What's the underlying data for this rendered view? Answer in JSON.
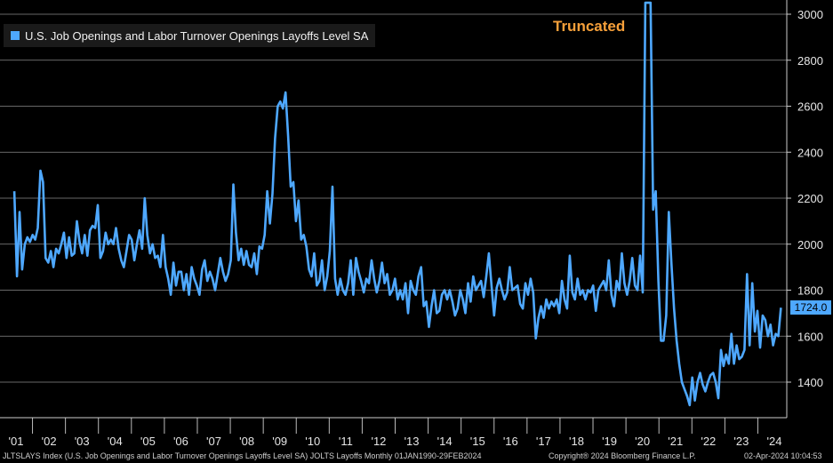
{
  "chart_data": {
    "type": "line",
    "title": "",
    "legend": "U.S. Job Openings and Labor Turnover Openings Layoffs Level SA",
    "annotation": "Truncated",
    "last_value_label": "1724.0",
    "series_color": "#4ea8ff",
    "ylim": [
      1250,
      3050
    ],
    "y_ticks": [
      1400,
      1600,
      1800,
      2000,
      2200,
      2400,
      2600,
      2800,
      3000
    ],
    "x_tick_labels": [
      "'01",
      "'02",
      "'03",
      "'04",
      "'05",
      "'06",
      "'07",
      "'08",
      "'09",
      "'10",
      "'11",
      "'12",
      "'13",
      "'14",
      "'15",
      "'16",
      "'17",
      "'18",
      "'19",
      "'20",
      "'21",
      "'22",
      "'23",
      "'24"
    ],
    "x_start_year": 2000.95,
    "x_end_year": 2024.2,
    "series": [
      {
        "values": [
          2230,
          1860,
          2140,
          1890,
          2000,
          2030,
          2010,
          2040,
          2020,
          2070,
          2320,
          2270,
          1940,
          1920,
          1970,
          1900,
          1980,
          1960,
          2000,
          2050,
          1940,
          2030,
          1950,
          1960,
          2100,
          2010,
          1960,
          2040,
          1950,
          2060,
          2080,
          2070,
          2170,
          1940,
          1970,
          2050,
          2000,
          2020,
          2000,
          2070,
          1980,
          1930,
          1900,
          1970,
          2040,
          2020,
          1930,
          2000,
          2060,
          1980,
          2200,
          2040,
          1960,
          2000,
          1940,
          1950,
          1900,
          2040,
          1900,
          1850,
          1780,
          1920,
          1820,
          1880,
          1880,
          1800,
          1870,
          1780,
          1900,
          1850,
          1820,
          1780,
          1890,
          1930,
          1840,
          1880,
          1850,
          1800,
          1870,
          1940,
          1880,
          1840,
          1870,
          1930,
          2260,
          2050,
          1930,
          1980,
          1910,
          1970,
          1910,
          1900,
          1960,
          1870,
          1990,
          1980,
          2040,
          2230,
          2090,
          2220,
          2460,
          2600,
          2620,
          2590,
          2660,
          2470,
          2250,
          2270,
          2100,
          2190,
          2020,
          2040,
          1990,
          1890,
          1860,
          1960,
          1820,
          1840,
          1930,
          1800,
          1860,
          1970,
          2250,
          1850,
          1780,
          1850,
          1800,
          1780,
          1830,
          1930,
          1780,
          1940,
          1880,
          1840,
          1790,
          1850,
          1830,
          1930,
          1850,
          1790,
          1840,
          1920,
          1830,
          1870,
          1780,
          1800,
          1850,
          1760,
          1800,
          1760,
          1830,
          1700,
          1840,
          1800,
          1780,
          1860,
          1900,
          1730,
          1750,
          1640,
          1730,
          1800,
          1700,
          1710,
          1780,
          1800,
          1760,
          1800,
          1750,
          1690,
          1720,
          1800,
          1760,
          1700,
          1830,
          1750,
          1860,
          1800,
          1820,
          1840,
          1770,
          1860,
          1960,
          1820,
          1690,
          1810,
          1850,
          1800,
          1760,
          1790,
          1900,
          1800,
          1810,
          1820,
          1740,
          1720,
          1830,
          1780,
          1850,
          1790,
          1590,
          1680,
          1730,
          1680,
          1760,
          1720,
          1750,
          1730,
          1760,
          1700,
          1840,
          1760,
          1720,
          1950,
          1790,
          1760,
          1850,
          1780,
          1800,
          1760,
          1800,
          1790,
          1820,
          1710,
          1800,
          1820,
          1840,
          1800,
          1930,
          1780,
          1730,
          1840,
          1800,
          1960,
          1830,
          1780,
          1840,
          1940,
          1820,
          1800,
          1950,
          1790,
          3050,
          3050,
          3050,
          2150,
          2230,
          1840,
          1580,
          1580,
          1690,
          2140,
          1920,
          1720,
          1580,
          1480,
          1400,
          1370,
          1340,
          1300,
          1420,
          1320,
          1400,
          1440,
          1390,
          1360,
          1400,
          1430,
          1440,
          1400,
          1330,
          1540,
          1470,
          1520,
          1480,
          1610,
          1480,
          1560,
          1500,
          1510,
          1540,
          1870,
          1560,
          1830,
          1620,
          1710,
          1550,
          1690,
          1670,
          1600,
          1650,
          1560,
          1610,
          1600,
          1724
        ]
      }
    ]
  },
  "footer": {
    "left": "JLTSLAYS Index (U.S. Job Openings and Labor Turnover Openings Layoffs Level SA) JOLTS Layoffs  Monthly 01JAN1990-29FEB2024",
    "center": "Copyright® 2024 Bloomberg Finance L.P.",
    "right": "02-Apr-2024 10:04:53"
  }
}
